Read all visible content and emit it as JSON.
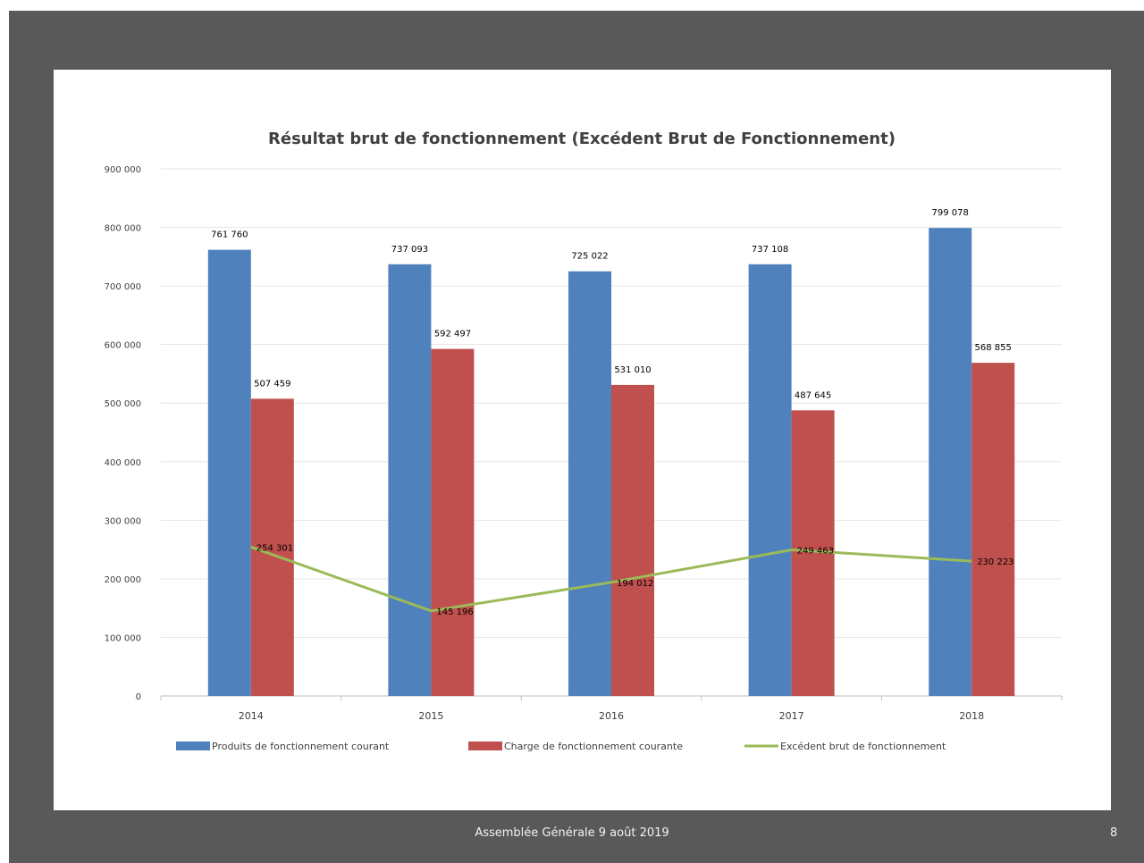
{
  "slide": {
    "footer": "Assemblée Générale 9 août 2019",
    "page_number": "8",
    "background": "#595959"
  },
  "chart_data": {
    "type": "bar",
    "title": "Résultat brut de fonctionnement (Excédent Brut de Fonctionnement)",
    "categories": [
      "2014",
      "2015",
      "2016",
      "2017",
      "2018"
    ],
    "series": [
      {
        "name": "Produits de fonctionnement courant",
        "type": "bar",
        "color": "#4f81bd",
        "values": [
          761760,
          737093,
          725022,
          737108,
          799078
        ],
        "labels": [
          "761 760",
          "737 093",
          "725 022",
          "737 108",
          "799 078"
        ]
      },
      {
        "name": "Charge de fonctionnement courante",
        "type": "bar",
        "color": "#c0504d",
        "values": [
          507459,
          592497,
          531010,
          487645,
          568855
        ],
        "labels": [
          "507 459",
          "592 497",
          "531 010",
          "487 645",
          "568 855"
        ]
      },
      {
        "name": "Excédent brut de fonctionnement",
        "type": "line",
        "color": "#9bbb59",
        "values": [
          254301,
          145196,
          194012,
          249463,
          230223
        ],
        "labels": [
          "254 301",
          "145 196",
          "194 012",
          "249 463",
          "230 223"
        ]
      }
    ],
    "ylim": [
      0,
      900000
    ],
    "yticks": [
      0,
      100000,
      200000,
      300000,
      400000,
      500000,
      600000,
      700000,
      800000,
      900000
    ],
    "ytick_labels": [
      "0",
      "100 000",
      "200 000",
      "300 000",
      "400 000",
      "500 000",
      "600 000",
      "700 000",
      "800 000",
      "900 000"
    ],
    "grid": true,
    "legend_position": "bottom"
  }
}
